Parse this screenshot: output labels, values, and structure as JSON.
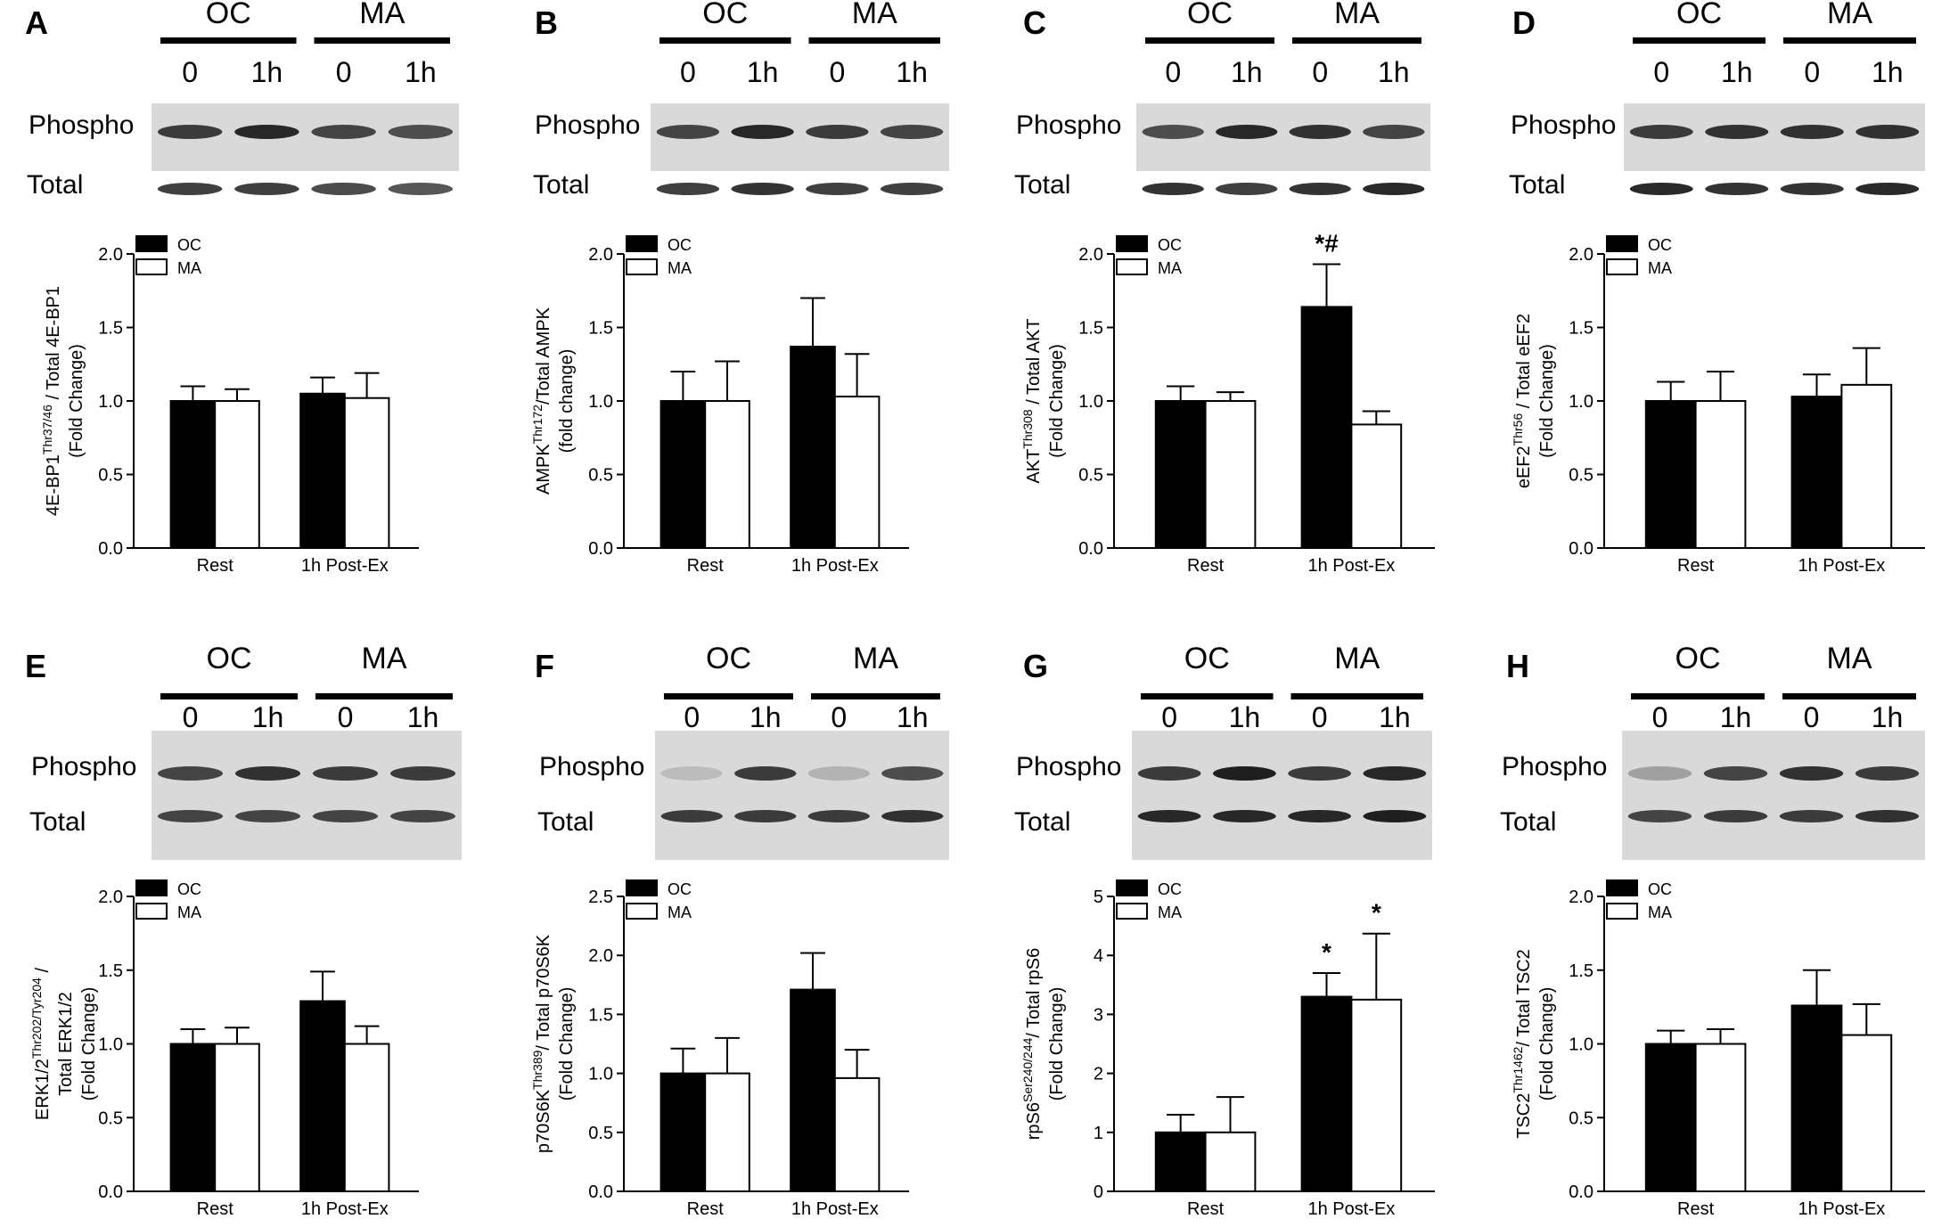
{
  "figure": {
    "blot_labels": {
      "group_oc": "OC",
      "group_ma": "MA",
      "time_0": "0",
      "time_1h": "1h",
      "phospho": "Phospho",
      "total": "Total"
    },
    "colors": {
      "OC": "#000000",
      "MA": "#ffffff",
      "axis": "#000000",
      "blot_bg": "#d9d9d9",
      "band": "#1e1e1e"
    }
  },
  "chart_data": [
    {
      "panel": "A",
      "type": "bar",
      "categories": [
        "Rest",
        "1h Post-Ex"
      ],
      "series": [
        {
          "name": "OC",
          "values": [
            1.0,
            1.05
          ],
          "errors": [
            0.1,
            0.11
          ]
        },
        {
          "name": "MA",
          "values": [
            1.0,
            1.02
          ],
          "errors": [
            0.08,
            0.17
          ]
        }
      ],
      "ylabel_lines": [
        [
          "4E-BP1",
          "Thr37/46",
          " / Total 4E-BP1"
        ],
        [
          "(Fold Change)",
          "",
          ""
        ]
      ],
      "ylim": [
        0,
        2.0
      ],
      "yticks": [
        "0.0",
        "0.5",
        "1.0",
        "1.5",
        "2.0"
      ],
      "legend": "top-left",
      "annotations": []
    },
    {
      "panel": "B",
      "type": "bar",
      "categories": [
        "Rest",
        "1h Post-Ex"
      ],
      "series": [
        {
          "name": "OC",
          "values": [
            1.0,
            1.37
          ],
          "errors": [
            0.2,
            0.33
          ]
        },
        {
          "name": "MA",
          "values": [
            1.0,
            1.03
          ],
          "errors": [
            0.27,
            0.29
          ]
        }
      ],
      "ylabel_lines": [
        [
          "AMPK",
          "Thr172",
          "/Total AMPK"
        ],
        [
          "(fold change)",
          "",
          ""
        ]
      ],
      "ylim": [
        0,
        2.0
      ],
      "yticks": [
        "0.0",
        "0.5",
        "1.0",
        "1.5",
        "2.0"
      ],
      "legend": "top-left",
      "annotations": []
    },
    {
      "panel": "C",
      "type": "bar",
      "categories": [
        "Rest",
        "1h Post-Ex"
      ],
      "series": [
        {
          "name": "OC",
          "values": [
            1.0,
            1.64
          ],
          "errors": [
            0.1,
            0.29
          ]
        },
        {
          "name": "MA",
          "values": [
            1.0,
            0.84
          ],
          "errors": [
            0.06,
            0.09
          ]
        }
      ],
      "ylabel_lines": [
        [
          "AKT",
          "Thr308",
          " / Total AKT"
        ],
        [
          "(Fold Change)",
          "",
          ""
        ]
      ],
      "ylim": [
        0,
        2.0
      ],
      "yticks": [
        "0.0",
        "0.5",
        "1.0",
        "1.5",
        "2.0"
      ],
      "legend": "top-left",
      "annotations": [
        {
          "category": 1,
          "series": 0,
          "text": "*#"
        }
      ]
    },
    {
      "panel": "D",
      "type": "bar",
      "categories": [
        "Rest",
        "1h Post-Ex"
      ],
      "series": [
        {
          "name": "OC",
          "values": [
            1.0,
            1.03
          ],
          "errors": [
            0.13,
            0.15
          ]
        },
        {
          "name": "MA",
          "values": [
            1.0,
            1.11
          ],
          "errors": [
            0.2,
            0.25
          ]
        }
      ],
      "ylabel_lines": [
        [
          "eEF2",
          "Thr56",
          " / Total eEF2"
        ],
        [
          "(Fold Change)",
          "",
          ""
        ]
      ],
      "ylim": [
        0,
        2.0
      ],
      "yticks": [
        "0.0",
        "0.5",
        "1.0",
        "1.5",
        "2.0"
      ],
      "legend": "top-left",
      "annotations": []
    },
    {
      "panel": "E",
      "type": "bar",
      "categories": [
        "Rest",
        "1h Post-Ex"
      ],
      "series": [
        {
          "name": "OC",
          "values": [
            1.0,
            1.29
          ],
          "errors": [
            0.1,
            0.2
          ]
        },
        {
          "name": "MA",
          "values": [
            1.0,
            1.0
          ],
          "errors": [
            0.11,
            0.12
          ]
        }
      ],
      "ylabel_lines": [
        [
          "ERK1/2",
          "Thr202/Tyr204",
          " /"
        ],
        [
          "Total ERK1/2",
          "",
          ""
        ],
        [
          "(Fold Change)",
          "",
          ""
        ]
      ],
      "ylim": [
        0,
        2.0
      ],
      "yticks": [
        "0.0",
        "0.5",
        "1.0",
        "1.5",
        "2.0"
      ],
      "legend": "top-left",
      "annotations": []
    },
    {
      "panel": "F",
      "type": "bar",
      "categories": [
        "Rest",
        "1h Post-Ex"
      ],
      "series": [
        {
          "name": "OC",
          "values": [
            1.0,
            1.71
          ],
          "errors": [
            0.21,
            0.31
          ]
        },
        {
          "name": "MA",
          "values": [
            1.0,
            0.96
          ],
          "errors": [
            0.3,
            0.24
          ]
        }
      ],
      "ylabel_lines": [
        [
          "p70S6K",
          "Thr389",
          "/ Total p70S6K"
        ],
        [
          "(Fold Change)",
          "",
          ""
        ]
      ],
      "ylim": [
        0,
        2.5
      ],
      "yticks": [
        "0.0",
        "0.5",
        "1.0",
        "1.5",
        "2.0",
        "2.5"
      ],
      "legend": "top-left",
      "annotations": []
    },
    {
      "panel": "G",
      "type": "bar",
      "categories": [
        "Rest",
        "1h Post-Ex"
      ],
      "series": [
        {
          "name": "OC",
          "values": [
            1.0,
            3.3
          ],
          "errors": [
            0.3,
            0.4
          ]
        },
        {
          "name": "MA",
          "values": [
            1.0,
            3.25
          ],
          "errors": [
            0.6,
            1.12
          ]
        }
      ],
      "ylabel_lines": [
        [
          "rpS6",
          "Ser240/244",
          "/ Total rpS6"
        ],
        [
          "(Fold Change)",
          "",
          ""
        ]
      ],
      "ylim": [
        0,
        5
      ],
      "yticks": [
        "0",
        "1",
        "2",
        "3",
        "4",
        "5"
      ],
      "legend": "top-left",
      "annotations": [
        {
          "category": 1,
          "series": 0,
          "text": "*"
        },
        {
          "category": 1,
          "series": 1,
          "text": "*"
        }
      ]
    },
    {
      "panel": "H",
      "type": "bar",
      "categories": [
        "Rest",
        "1h Post-Ex"
      ],
      "series": [
        {
          "name": "OC",
          "values": [
            1.0,
            1.26
          ],
          "errors": [
            0.09,
            0.24
          ]
        },
        {
          "name": "MA",
          "values": [
            1.0,
            1.06
          ],
          "errors": [
            0.1,
            0.21
          ]
        }
      ],
      "ylabel_lines": [
        [
          "TSC2",
          "Thr1462",
          "/ Total TSC2"
        ],
        [
          "(Fold Change)",
          "",
          ""
        ]
      ],
      "ylim": [
        0,
        2.0
      ],
      "yticks": [
        "0.0",
        "0.5",
        "1.0",
        "1.5",
        "2.0"
      ],
      "legend": "top-left",
      "annotations": []
    }
  ]
}
